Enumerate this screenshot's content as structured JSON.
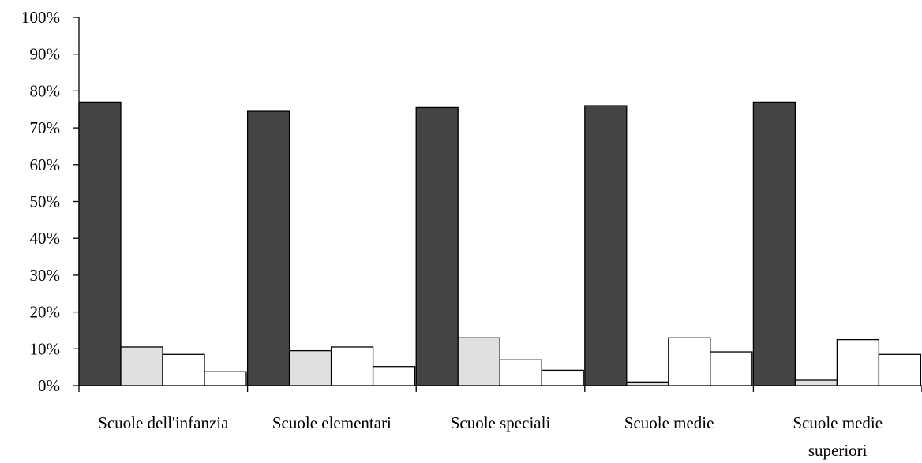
{
  "chart_data": {
    "type": "bar",
    "title": "",
    "xlabel": "",
    "ylabel": "",
    "ylim": [
      0,
      100
    ],
    "y_ticks": [
      "0%",
      "10%",
      "20%",
      "30%",
      "40%",
      "50%",
      "60%",
      "70%",
      "80%",
      "90%",
      "100%"
    ],
    "categories": [
      [
        "Scuole dell'infanzia"
      ],
      [
        "Scuole elementari"
      ],
      [
        "Scuole speciali"
      ],
      [
        "Scuole medie"
      ],
      [
        "Scuole medie",
        "superiori"
      ]
    ],
    "series": [
      {
        "values": [
          77,
          74.5,
          75.5,
          76,
          77
        ],
        "color": "#444444"
      },
      {
        "values": [
          10.5,
          9.5,
          13,
          1,
          1.5
        ],
        "color": "#e0e0e0"
      },
      {
        "values": [
          8.5,
          10.5,
          7,
          13,
          12.5
        ],
        "color": "#ffffff"
      },
      {
        "values": [
          3.8,
          5.2,
          4.2,
          9.2,
          8.5
        ],
        "color": "#ffffff"
      }
    ],
    "grid": false,
    "legend": "none"
  }
}
